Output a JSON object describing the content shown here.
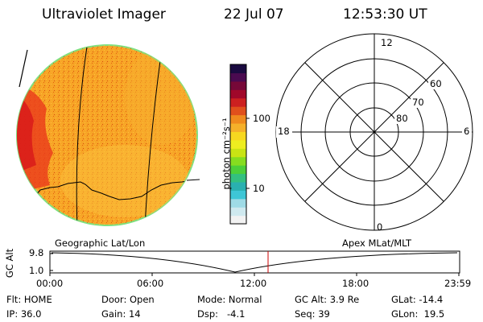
{
  "header": {
    "title": "Ultraviolet Imager",
    "date": "22 Jul 07",
    "time": "12:53:30 UT"
  },
  "colorbar": {
    "label": "photon cm⁻²s⁻¹",
    "ticks": [
      "100",
      "10"
    ],
    "colors": [
      "#f2f2f2",
      "#cfe9ef",
      "#9fdbe6",
      "#3ec6d6",
      "#2ab0b0",
      "#33c080",
      "#4ccf3a",
      "#86dd20",
      "#c9e414",
      "#eeee20",
      "#f7d820",
      "#f5b02a",
      "#ef8a1e",
      "#e0501c",
      "#cc2020",
      "#a0082a",
      "#760838",
      "#4a0a50",
      "#1a0a40"
    ]
  },
  "polar": {
    "labels": {
      "top": "12",
      "bottom": "0",
      "left": "18",
      "right": "6",
      "r60": "60",
      "r70": "70",
      "r80": "80"
    }
  },
  "timeline": {
    "y_axis_label": "GC Alt",
    "y_max": "9.8",
    "y_min": "1.0",
    "left_label": "Geographic Lat/Lon",
    "right_label": "Apex MLat/MLT",
    "x_ticks": [
      "00:00",
      "06:00",
      "12:00",
      "18:00",
      "23:59"
    ],
    "marker_color": "#cc0000"
  },
  "info": {
    "flt": "Flt: HOME",
    "ip": "IP: 36.0",
    "door": "Door: Open",
    "gain": "Gain: 14",
    "mode": "Mode: Normal",
    "dsp": "Dsp:   -4.1",
    "gc_alt": "GC Alt: 3.9 Re",
    "seq": "Seq: 39",
    "glat": "GLat: -14.4",
    "glon": "GLon:  19.5"
  }
}
